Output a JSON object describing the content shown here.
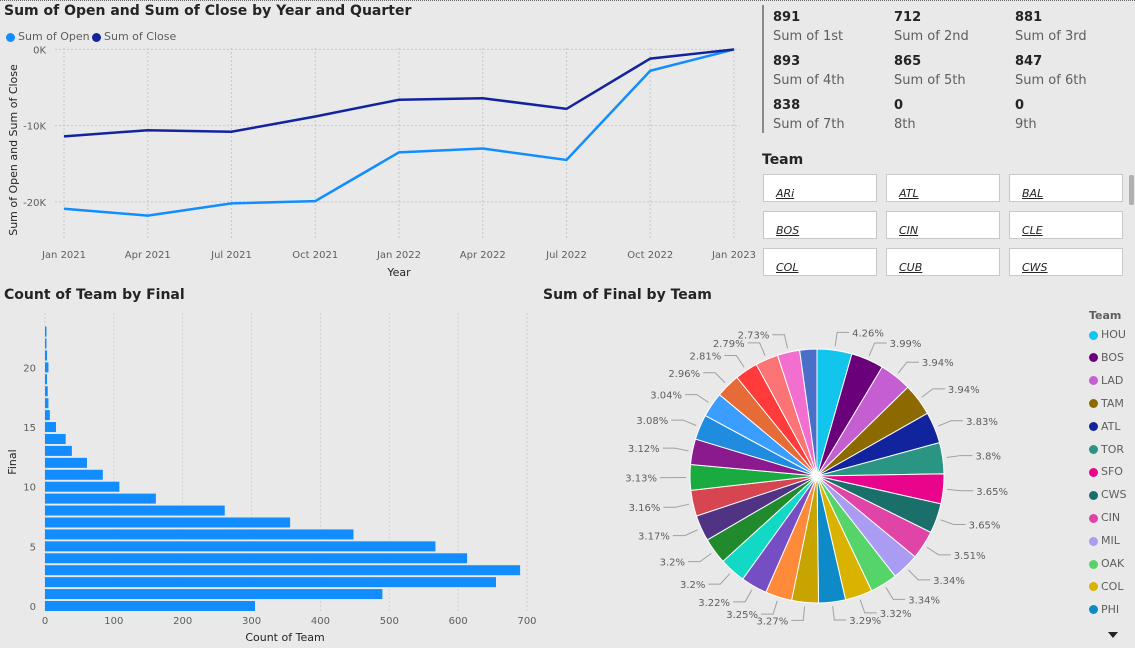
{
  "line_chart": {
    "title": "Sum of Open and Sum of Close by Year and Quarter",
    "legend": [
      {
        "name": "Sum of Open",
        "color": "#118dff"
      },
      {
        "name": "Sum of Close",
        "color": "#12239e"
      }
    ],
    "x_label": "Year",
    "y_label": "Sum of Open and Sum of Close",
    "y_ticks": [
      "0K",
      "-10K",
      "-20K"
    ]
  },
  "kpis": [
    {
      "value": "891",
      "label": "Sum of 1st"
    },
    {
      "value": "712",
      "label": "Sum of 2nd"
    },
    {
      "value": "881",
      "label": "Sum of 3rd"
    },
    {
      "value": "893",
      "label": "Sum of 4th"
    },
    {
      "value": "865",
      "label": "Sum of 5th"
    },
    {
      "value": "847",
      "label": "Sum of 6th"
    },
    {
      "value": "838",
      "label": "Sum of 7th"
    },
    {
      "value": "0",
      "label": "8th"
    },
    {
      "value": "0",
      "label": "9th"
    }
  ],
  "team_slicer": {
    "title": "Team",
    "items": [
      "ARi",
      "ATL",
      "BAL",
      "BOS",
      "CIN",
      "CLE",
      "COL",
      "CUB",
      "CWS"
    ]
  },
  "bar_chart": {
    "title": "Count of Team by Final",
    "x_label": "Count of Team",
    "y_label": "Final",
    "x_ticks": [
      "0",
      "100",
      "200",
      "300",
      "400",
      "500",
      "600",
      "700"
    ],
    "y_ticks": [
      "0",
      "5",
      "10",
      "15",
      "20"
    ]
  },
  "pie_chart": {
    "title": "Sum of Final by Team",
    "legend_title": "Team"
  },
  "chart_data": [
    {
      "type": "line",
      "title": "Sum of Open and Sum of Close by Year and Quarter",
      "x": [
        "Jan 2021",
        "Apr 2021",
        "Jul 2021",
        "Oct 2021",
        "Jan 2022",
        "Apr 2022",
        "Jul 2022",
        "Oct 2022",
        "Jan 2023"
      ],
      "series": [
        {
          "name": "Sum of Open",
          "color": "#118dff",
          "values": [
            -20900,
            -21800,
            -20200,
            -19900,
            -13500,
            -13000,
            -14500,
            -2800,
            0
          ]
        },
        {
          "name": "Sum of Close",
          "color": "#12239e",
          "values": [
            -11400,
            -10600,
            -10800,
            -8800,
            -6600,
            -6400,
            -7800,
            -1200,
            0
          ]
        }
      ],
      "xlabel": "Year",
      "ylabel": "Sum of Open and Sum of Close",
      "ylim": [
        -25000,
        1500
      ],
      "grid": true,
      "legend": "top-left"
    },
    {
      "type": "bar",
      "orientation": "horizontal",
      "title": "Count of Team by Final",
      "categories": [
        0,
        1,
        2,
        3,
        4,
        5,
        6,
        7,
        8,
        9,
        10,
        11,
        12,
        13,
        14,
        15,
        16,
        17,
        18,
        19,
        20,
        21,
        22,
        23
      ],
      "values": [
        305,
        490,
        655,
        690,
        613,
        567,
        448,
        356,
        261,
        161,
        108,
        84,
        61,
        39,
        30,
        16,
        7,
        5,
        4,
        3,
        5,
        3,
        2,
        1
      ],
      "xlabel": "Count of Team",
      "ylabel": "Final",
      "xlim": [
        0,
        700
      ],
      "color": "#118dff"
    },
    {
      "type": "pie",
      "title": "Sum of Final by Team",
      "slices": [
        {
          "label": "HOU",
          "value": 4.26,
          "text": "4.26%",
          "color": "#12c5ed"
        },
        {
          "label": "BOS",
          "value": 3.99,
          "text": "3.99%",
          "color": "#6b007b"
        },
        {
          "label": "LAD",
          "value": 3.94,
          "text": "3.94%",
          "color": "#c55fd1"
        },
        {
          "label": "TAM",
          "value": 3.94,
          "text": "3.94%",
          "color": "#8d6a00"
        },
        {
          "label": "ATL",
          "value": 3.83,
          "text": "3.83%",
          "color": "#12239e"
        },
        {
          "label": "TOR",
          "value": 3.8,
          "text": "3.8%",
          "color": "#2a9582"
        },
        {
          "label": "SFO",
          "value": 3.65,
          "text": "3.65%",
          "color": "#e8048b"
        },
        {
          "label": "CWS",
          "value": 3.65,
          "text": "3.65%",
          "color": "#1b6f6b"
        },
        {
          "label": "CIN",
          "value": 3.51,
          "text": "3.51%",
          "color": "#e044a7"
        },
        {
          "label": "MIL",
          "value": 3.34,
          "text": "3.34%",
          "color": "#a99cf2"
        },
        {
          "label": "OAK",
          "value": 3.34,
          "text": "3.34%",
          "color": "#56d46a"
        },
        {
          "label": "COL",
          "value": 3.32,
          "text": "3.32%",
          "color": "#d9b300"
        },
        {
          "label": "PHI",
          "value": 3.29,
          "text": "3.29%",
          "color": "#0e8ac8"
        },
        {
          "label": "",
          "value": 3.27,
          "text": "3.27%",
          "color": "#c8a400"
        },
        {
          "label": "",
          "value": 3.25,
          "text": "3.25%",
          "color": "#ff8a3a"
        },
        {
          "label": "",
          "value": 3.22,
          "text": "3.22%",
          "color": "#744ec2"
        },
        {
          "label": "",
          "value": 3.2,
          "text": "3.2%",
          "color": "#11d9c6"
        },
        {
          "label": "",
          "value": 3.2,
          "text": "3.2%",
          "color": "#218a2c"
        },
        {
          "label": "",
          "value": 3.17,
          "text": "3.17%",
          "color": "#513384"
        },
        {
          "label": "",
          "value": 3.16,
          "text": "3.16%",
          "color": "#d64550"
        },
        {
          "label": "",
          "value": 3.13,
          "text": "3.13%",
          "color": "#1aab40"
        },
        {
          "label": "",
          "value": 3.12,
          "text": "3.12%",
          "color": "#8b1a8e"
        },
        {
          "label": "",
          "value": 3.08,
          "text": "3.08%",
          "color": "#1f8ce0"
        },
        {
          "label": "",
          "value": 3.04,
          "text": "3.04%",
          "color": "#3b9eff"
        },
        {
          "label": "",
          "value": 2.96,
          "text": "2.96%",
          "color": "#e66c37"
        },
        {
          "label": "",
          "value": 2.81,
          "text": "2.81%",
          "color": "#ff3b3b"
        },
        {
          "label": "",
          "value": 2.79,
          "text": "2.79%",
          "color": "#fd7476"
        },
        {
          "label": "",
          "value": 2.73,
          "text": "2.73%",
          "color": "#f26fd0"
        },
        {
          "label": "",
          "value": 2.1,
          "text": "",
          "color": "#4a6fc9"
        }
      ]
    }
  ]
}
